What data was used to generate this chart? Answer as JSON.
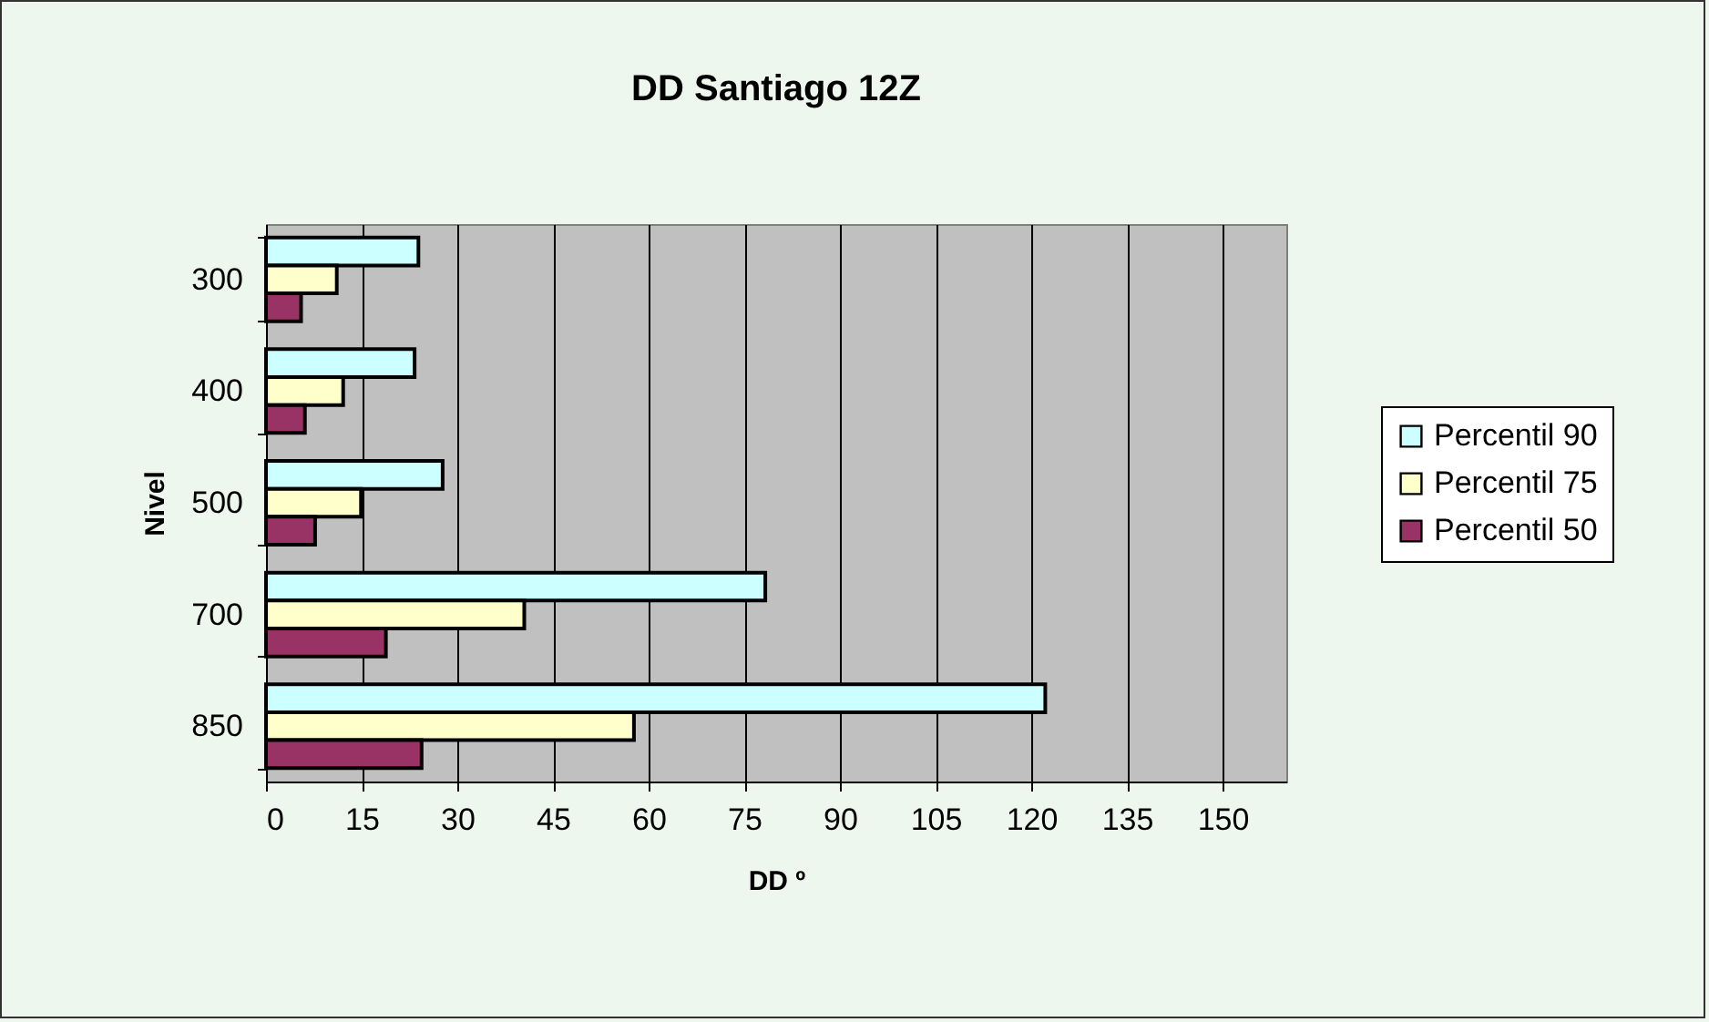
{
  "chart_data": {
    "type": "bar",
    "orientation": "horizontal",
    "title": "DD Santiago 12Z",
    "xlabel": "DD º",
    "ylabel": "Nivel",
    "categories": [
      "300",
      "400",
      "500",
      "700",
      "850"
    ],
    "series": [
      {
        "name": "Percentil 90",
        "color": "#ccffff",
        "values": [
          23.9,
          23.3,
          27.7,
          78.3,
          122.2
        ]
      },
      {
        "name": "Percentil 75",
        "color": "#ffffcc",
        "values": [
          11.1,
          12.1,
          14.9,
          40.5,
          57.7
        ]
      },
      {
        "name": "Percentil 50",
        "color": "#993366",
        "values": [
          5.5,
          6.1,
          7.7,
          18.8,
          24.4
        ]
      }
    ],
    "xlim": [
      0,
      160
    ],
    "xticks": [
      0,
      15,
      30,
      45,
      60,
      75,
      90,
      105,
      120,
      135,
      150
    ],
    "grid": "x",
    "legend": "right"
  }
}
